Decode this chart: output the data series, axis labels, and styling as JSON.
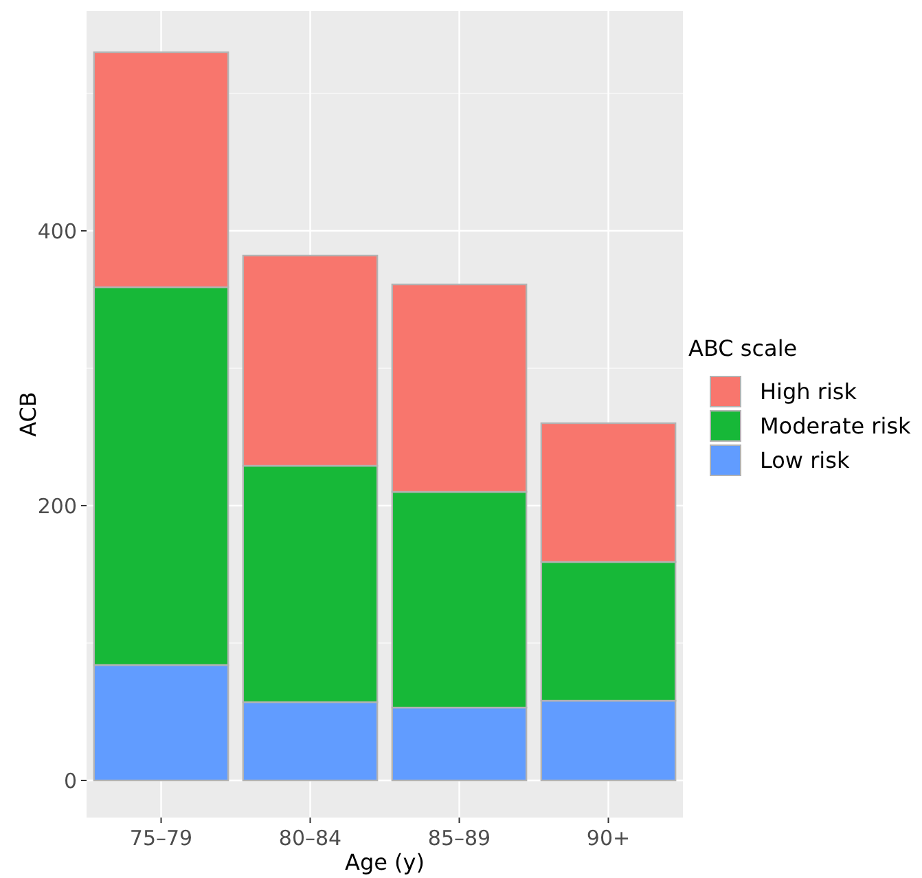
{
  "chart_data": {
    "type": "bar",
    "stacked": true,
    "xlabel": "Age (y)",
    "ylabel": "ACB",
    "legend_title": "ABC scale",
    "legend": "right",
    "categories": [
      "75–79",
      "80–84",
      "85–89",
      "90+"
    ],
    "series": [
      {
        "name": "Low risk",
        "color": "#619cff",
        "values": [
          84,
          57,
          53,
          58
        ]
      },
      {
        "name": "Moderate risk",
        "color": "#17b838",
        "values": [
          275,
          172,
          157,
          101
        ]
      },
      {
        "name": "High risk",
        "color": "#f8766d",
        "values": [
          171,
          153,
          151,
          101
        ]
      }
    ],
    "ylim": [
      -27,
      560
    ],
    "yticks": [
      0,
      200,
      400
    ],
    "grid": true
  }
}
